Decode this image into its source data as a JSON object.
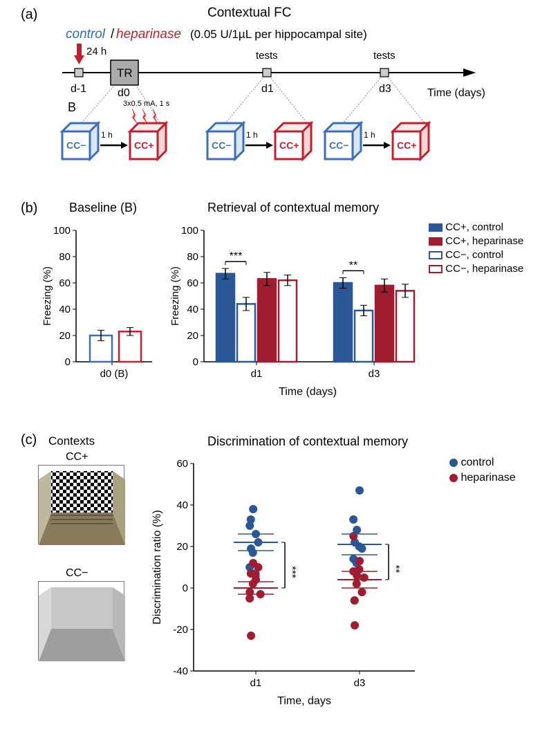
{
  "panelA": {
    "label": "(a)",
    "title": "Contextual FC",
    "control_text": "control",
    "control_color": "#2b6db8",
    "heparinase_text": "heparinase",
    "heparinase_color": "#c21f2f",
    "dose_text": "(0.05 U/1µL per hippocampal site)",
    "timeline": {
      "d_minus1": "d-1",
      "d0": "d0",
      "d1": "d1",
      "d3": "d3",
      "TR": "TR",
      "tests": "tests",
      "h24": "24 h",
      "time_label": "Time (days)",
      "B_label": "B",
      "shock_text": "3x0.5 mA, 1 s",
      "CC_plus": "CC+",
      "CC_minus": "CC−",
      "one_h": "1 h"
    }
  },
  "panelB": {
    "label": "(b)",
    "baseline_title": "Baseline (B)",
    "retrieval_title": "Retrieval of contextual memory",
    "ylabel": "Freezing (%)",
    "xlabel": "Time (days)",
    "x_baseline": "d0 (B)",
    "x_d1": "d1",
    "x_d3": "d3",
    "ylim": [
      0,
      100
    ],
    "ytick_step": 20,
    "legend": [
      {
        "label": "CC+, control",
        "fill": "#2b5797",
        "stroke": "#2b5797"
      },
      {
        "label": "CC+, heparinase",
        "fill": "#a01d2f",
        "stroke": "#a01d2f"
      },
      {
        "label": "CC−, control",
        "fill": "#ffffff",
        "stroke": "#2b5797"
      },
      {
        "label": "CC−, heparinase",
        "fill": "#ffffff",
        "stroke": "#a01d2f"
      }
    ],
    "baseline_bars": [
      {
        "value": 20,
        "err": 4,
        "fill": "#ffffff",
        "stroke": "#3b6fb9"
      },
      {
        "value": 23,
        "err": 3,
        "fill": "#ffffff",
        "stroke": "#c21f2f"
      }
    ],
    "d1_bars": [
      {
        "value": 67,
        "err": 4,
        "fill": "#2b5797",
        "stroke": "#2b5797"
      },
      {
        "value": 44,
        "err": 5,
        "fill": "#ffffff",
        "stroke": "#2b5797"
      },
      {
        "value": 63,
        "err": 5,
        "fill": "#a01d2f",
        "stroke": "#a01d2f"
      },
      {
        "value": 62,
        "err": 4,
        "fill": "#ffffff",
        "stroke": "#a01d2f"
      }
    ],
    "d3_bars": [
      {
        "value": 60,
        "err": 4,
        "fill": "#2b5797",
        "stroke": "#2b5797"
      },
      {
        "value": 39,
        "err": 4,
        "fill": "#ffffff",
        "stroke": "#2b5797"
      },
      {
        "value": 58,
        "err": 5,
        "fill": "#a01d2f",
        "stroke": "#a01d2f"
      },
      {
        "value": 54,
        "err": 5,
        "fill": "#ffffff",
        "stroke": "#a01d2f"
      }
    ],
    "sig_d1": "***",
    "sig_d3": "**",
    "bar_width": 0.8
  },
  "panelC": {
    "label": "(c)",
    "contexts_title": "Contexts",
    "discrimination_title": "Discrimination of contextual memory",
    "ylabel": "Discrimination ratio (%)",
    "xlabel": "Time, days",
    "x_d1": "d1",
    "x_d3": "d3",
    "ylim": [
      -40,
      60
    ],
    "ytick_step": 20,
    "legend": [
      {
        "label": "control",
        "color": "#2b5797"
      },
      {
        "label": "heparinase",
        "color": "#a01d2f"
      }
    ],
    "CC_plus": "CC+",
    "CC_minus": "CC−",
    "sig_d1": "***",
    "sig_d3": "**",
    "d1_control": [
      26,
      38,
      19,
      30,
      10,
      33,
      17,
      7,
      22
    ],
    "d1_control_mean": 22,
    "d1_control_err": 4,
    "d1_hep": [
      4,
      12,
      -23,
      -2,
      -5,
      7,
      2,
      6,
      10,
      -3
    ],
    "d1_hep_mean": 0,
    "d1_hep_err": 3,
    "d3_control": [
      47,
      28,
      22,
      14,
      33,
      -6,
      12,
      20,
      19
    ],
    "d3_control_mean": 21,
    "d3_control_err": 5,
    "d3_hep": [
      13,
      6,
      -18,
      25,
      8,
      -6,
      2,
      9,
      -2,
      5
    ],
    "d3_hep_mean": 4,
    "d3_hep_err": 4,
    "dot_radius": 6
  },
  "colors": {
    "axis": "#000000",
    "blue": "#2b5797",
    "red": "#a01d2f",
    "lightblue": "#3b6fb9",
    "brightred": "#c21f2f"
  }
}
